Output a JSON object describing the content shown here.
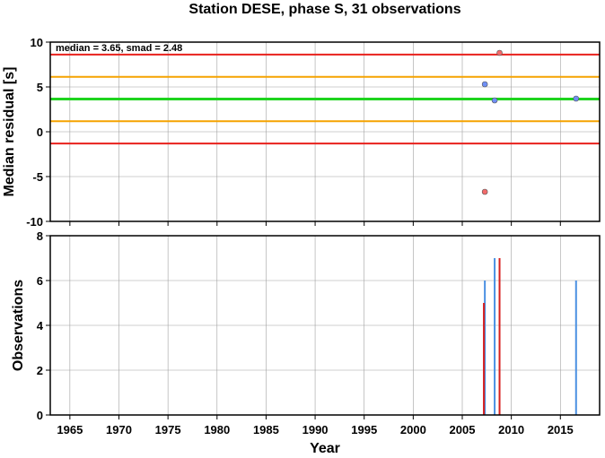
{
  "chart_data": [
    {
      "type": "scatter",
      "title": "Station DESE, phase S, 31 observations",
      "xlabel": "",
      "ylabel": "Median residual [s]",
      "xlim": [
        1963,
        2019
      ],
      "ylim": [
        -10,
        10
      ],
      "x_ticks": [
        1965,
        1970,
        1975,
        1980,
        1985,
        1990,
        1995,
        2000,
        2005,
        2010,
        2015
      ],
      "y_ticks": [
        10,
        5,
        0,
        -5,
        -10
      ],
      "grid": true,
      "annotation": "median = 3.65, smad = 2.48",
      "hlines": [
        {
          "value": 8.61,
          "color": "#e8201c"
        },
        {
          "value": 6.13,
          "color": "#f5a300"
        },
        {
          "value": 3.65,
          "color": "#1ed41e"
        },
        {
          "value": 1.17,
          "color": "#f5a300"
        },
        {
          "value": -1.31,
          "color": "#e8201c"
        }
      ],
      "points": [
        {
          "x": 2007.3,
          "y": 5.3,
          "color": "#6f8ff5"
        },
        {
          "x": 2008.3,
          "y": 3.5,
          "color": "#6f8ff5"
        },
        {
          "x": 2016.6,
          "y": 3.7,
          "color": "#6f8ff5"
        },
        {
          "x": 2008.8,
          "y": 8.8,
          "color": "#f26b6b"
        },
        {
          "x": 2007.3,
          "y": -6.7,
          "color": "#f26b6b"
        }
      ]
    },
    {
      "type": "bar",
      "title": "",
      "xlabel": "Year",
      "ylabel": "Observations",
      "xlim": [
        1963,
        2019
      ],
      "ylim": [
        0,
        8
      ],
      "x_ticks": [
        1965,
        1970,
        1975,
        1980,
        1985,
        1990,
        1995,
        2000,
        2005,
        2010,
        2015
      ],
      "y_ticks": [
        8,
        6,
        4,
        2,
        0
      ],
      "grid": true,
      "bars": [
        {
          "x": 2007.3,
          "value": 6,
          "color": "#4a90e2"
        },
        {
          "x": 2007.2,
          "value": 5,
          "color": "#d62020"
        },
        {
          "x": 2008.3,
          "value": 7,
          "color": "#4a90e2"
        },
        {
          "x": 2008.8,
          "value": 7,
          "color": "#d62020"
        },
        {
          "x": 2016.6,
          "value": 6,
          "color": "#4a90e2"
        }
      ]
    }
  ]
}
